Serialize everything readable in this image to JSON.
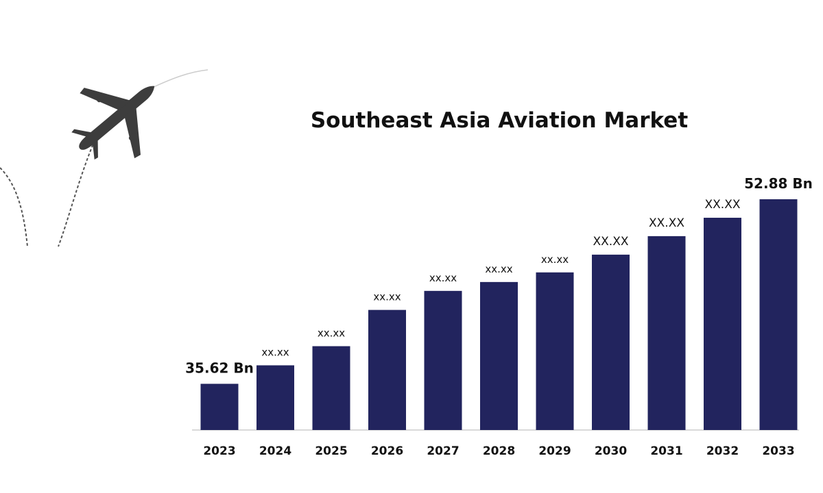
{
  "chart_data": {
    "type": "bar",
    "title": "Southeast Asia Aviation Market",
    "xlabel": "",
    "ylabel": "",
    "unit": "Bn",
    "categories": [
      "2023",
      "2024",
      "2025",
      "2026",
      "2027",
      "2028",
      "2029",
      "2030",
      "2031",
      "2032",
      "2033"
    ],
    "values": [
      35.62,
      37.35,
      39.14,
      42.53,
      44.31,
      45.14,
      46.04,
      47.7,
      49.43,
      51.15,
      52.88
    ],
    "data_labels": [
      "35.62 Bn",
      "xx.xx",
      "xx.xx",
      "xx.xx",
      "xx.xx",
      "xx.xx",
      "xx.xx",
      "XX.XX",
      "XX.XX",
      "XX.XX",
      "52.88 Bn"
    ],
    "ylim": [
      31.3,
      54
    ],
    "grid": false,
    "legend": "none",
    "colors": {
      "bar": "#22245e",
      "baseline": "#d9d9d9",
      "plane": "#3d3d3d"
    },
    "decoration": "airplane-icon"
  }
}
